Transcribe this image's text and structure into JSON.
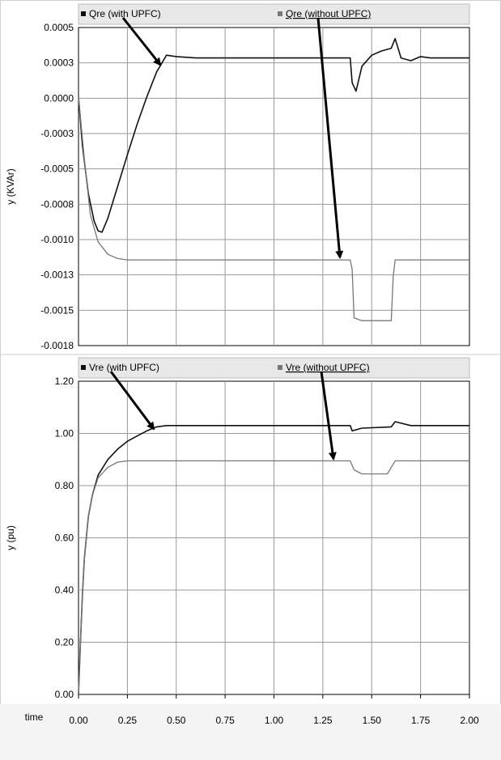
{
  "chart_data": [
    {
      "type": "line",
      "ylabel": "y  (KVAr)",
      "ylim": [
        -0.0018,
        0.0005
      ],
      "xlim": [
        0,
        2
      ],
      "yticks": [
        "0.0005",
        "0.0003",
        "0.0000",
        "-0.0003",
        "-0.0005",
        "-0.0008",
        "-0.0010",
        "-0.0013",
        "-0.0015",
        "-0.0018"
      ],
      "grid": true,
      "legend_placement": "top",
      "series": [
        {
          "name": "Qre (with UPFC)",
          "color": "#111111",
          "x": [
            0,
            0.02,
            0.05,
            0.08,
            0.1,
            0.12,
            0.15,
            0.2,
            0.25,
            0.3,
            0.35,
            0.4,
            0.45,
            0.5,
            0.6,
            0.8,
            1.0,
            1.2,
            1.35,
            1.39,
            1.4,
            1.42,
            1.45,
            1.5,
            1.55,
            1.6,
            1.62,
            1.65,
            1.7,
            1.75,
            1.8,
            2.0
          ],
          "y": [
            0.0,
            -0.00035,
            -0.0007,
            -0.0009,
            -0.00097,
            -0.00098,
            -0.00088,
            -0.00065,
            -0.00042,
            -0.0002,
            0.0,
            0.00018,
            0.0003,
            0.00029,
            0.00028,
            0.00028,
            0.00028,
            0.00028,
            0.00028,
            0.00028,
            0.0001,
            4e-05,
            0.00022,
            0.0003,
            0.00033,
            0.00035,
            0.00042,
            0.00028,
            0.00026,
            0.00029,
            0.00028,
            0.00028
          ]
        },
        {
          "name": "Qre (without UPFC)",
          "color": "#777777",
          "x": [
            0,
            0.03,
            0.06,
            0.1,
            0.15,
            0.2,
            0.25,
            0.3,
            0.4,
            0.6,
            1.0,
            1.39,
            1.4,
            1.41,
            1.45,
            1.6,
            1.61,
            1.62,
            1.7,
            2.0
          ],
          "y": [
            0.0,
            -0.00045,
            -0.00085,
            -0.00105,
            -0.00114,
            -0.00117,
            -0.00118,
            -0.00118,
            -0.00118,
            -0.00118,
            -0.00118,
            -0.00118,
            -0.00125,
            -0.0016,
            -0.00162,
            -0.00162,
            -0.0013,
            -0.00118,
            -0.00118,
            -0.00118
          ]
        }
      ]
    },
    {
      "type": "line",
      "ylabel": "y  (pu)",
      "xlabel": "time",
      "ylim": [
        0,
        1.2
      ],
      "xlim": [
        0,
        2
      ],
      "yticks": [
        "1.20",
        "1.00",
        "0.80",
        "0.60",
        "0.40",
        "0.20",
        "0.00"
      ],
      "xticks": [
        "0.00",
        "0.25",
        "0.50",
        "0.75",
        "1.00",
        "1.25",
        "1.50",
        "1.75",
        "2.00"
      ],
      "grid": true,
      "legend_placement": "top",
      "series": [
        {
          "name": "Vre (with UPFC)",
          "color": "#111111",
          "x": [
            0,
            0.01,
            0.02,
            0.03,
            0.05,
            0.07,
            0.1,
            0.15,
            0.2,
            0.25,
            0.3,
            0.35,
            0.4,
            0.45,
            0.5,
            0.8,
            1.2,
            1.39,
            1.4,
            1.45,
            1.6,
            1.62,
            1.7,
            2.0
          ],
          "y": [
            0.0,
            0.2,
            0.38,
            0.52,
            0.68,
            0.76,
            0.84,
            0.9,
            0.94,
            0.97,
            0.99,
            1.01,
            1.025,
            1.03,
            1.03,
            1.03,
            1.03,
            1.03,
            1.01,
            1.02,
            1.025,
            1.045,
            1.03,
            1.03
          ]
        },
        {
          "name": "Vre (without UPFC)",
          "color": "#777777",
          "x": [
            0,
            0.01,
            0.02,
            0.03,
            0.05,
            0.07,
            0.1,
            0.15,
            0.2,
            0.25,
            0.3,
            0.4,
            0.8,
            1.2,
            1.39,
            1.41,
            1.45,
            1.58,
            1.6,
            1.62,
            1.7,
            2.0
          ],
          "y": [
            0.0,
            0.2,
            0.38,
            0.52,
            0.68,
            0.76,
            0.83,
            0.87,
            0.89,
            0.895,
            0.895,
            0.895,
            0.895,
            0.895,
            0.895,
            0.86,
            0.845,
            0.845,
            0.87,
            0.895,
            0.895,
            0.895
          ]
        }
      ]
    }
  ]
}
